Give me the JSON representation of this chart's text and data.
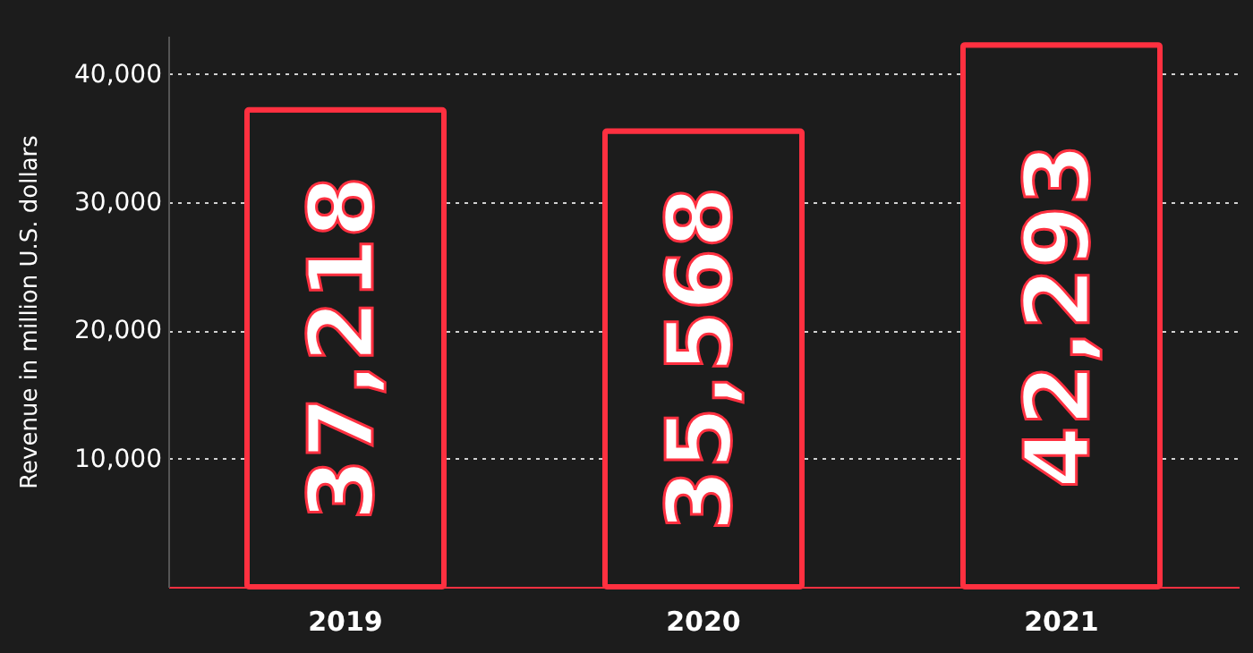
{
  "chart_data": {
    "type": "bar",
    "ylabel": "Revenue in million U.S. dollars",
    "categories": [
      "2019",
      "2020",
      "2021"
    ],
    "values": [
      37218,
      35568,
      42293
    ],
    "value_labels": [
      "37,218",
      "35,568",
      "42,293"
    ],
    "color": "#ff3040",
    "ylim": [
      0,
      43000
    ],
    "yticks": [
      {
        "value": 10000,
        "label": "10,000"
      },
      {
        "value": 20000,
        "label": "20,000"
      },
      {
        "value": 30000,
        "label": "30,000"
      },
      {
        "value": 40000,
        "label": "40,000"
      }
    ],
    "grid": "y"
  }
}
